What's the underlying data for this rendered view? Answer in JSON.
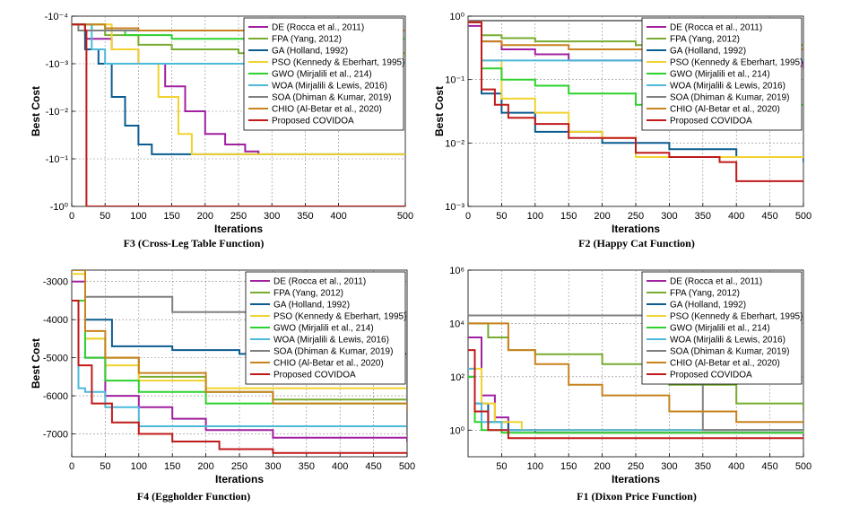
{
  "legend": [
    {
      "name": "DE (Rocca et al., 2011)",
      "color": "#a020a0"
    },
    {
      "name": "FPA (Yang, 2012)",
      "color": "#77ac30"
    },
    {
      "name": "GA (Holland, 1992)",
      "color": "#0b5c8f"
    },
    {
      "name": "PSO (Kennedy & Eberhart, 1995)",
      "color": "#f2d22e"
    },
    {
      "name": "GWO (Mirjalili et al., 214)",
      "color": "#2ed12e"
    },
    {
      "name": "WOA (Mirjalili & Lewis, 2016)",
      "color": "#4db9d9"
    },
    {
      "name": "SOA (Dhiman & Kumar, 2019)",
      "color": "#808080"
    },
    {
      "name": "CHIO (Al-Betar et al., 2020)",
      "color": "#c8821e"
    },
    {
      "name": "Proposed COVIDOA",
      "color": "#c01a1a"
    }
  ],
  "chart_data": [
    {
      "type": "line",
      "caption": "F3 (Cross-Leg Table Function)",
      "xlabel": "Iterations",
      "ylabel": "Best Cost",
      "xlim": [
        0,
        500
      ],
      "xticks": [
        "0",
        "50",
        "100",
        "150",
        "200",
        "250",
        "300",
        "350",
        "400",
        "500"
      ],
      "yscale": "log-negative",
      "yticks": [
        "-10⁻⁴",
        "-10⁻³",
        "-10⁻²",
        "-10⁻¹",
        "-10⁰"
      ],
      "ylim": [
        -0.0001,
        -1
      ],
      "legend_position": "top-right",
      "series": [
        {
          "name": "DE (Rocca et al., 2011)",
          "x": [
            0,
            20,
            60,
            100,
            140,
            170,
            200,
            230,
            260,
            280
          ],
          "y": [
            -0.00015,
            -0.0003,
            -0.0005,
            -0.001,
            -0.003,
            -0.01,
            -0.03,
            -0.05,
            -0.07,
            -0.08
          ]
        },
        {
          "name": "FPA (Yang, 2012)",
          "x": [
            0,
            50,
            100,
            150,
            250,
            500
          ],
          "y": [
            -0.00015,
            -0.00025,
            -0.0004,
            -0.0005,
            -0.0006,
            -0.0007
          ]
        },
        {
          "name": "GA (Holland, 1992)",
          "x": [
            0,
            20,
            40,
            60,
            80,
            100,
            120,
            500
          ],
          "y": [
            -0.00015,
            -0.0005,
            -0.001,
            -0.005,
            -0.02,
            -0.05,
            -0.08,
            -0.08
          ]
        },
        {
          "name": "PSO (Kennedy & Eberhart, 1995)",
          "x": [
            0,
            60,
            100,
            130,
            160,
            180,
            500
          ],
          "y": [
            -0.00015,
            -0.0005,
            -0.001,
            -0.005,
            -0.03,
            -0.08,
            -0.08
          ]
        },
        {
          "name": "GWO (Mirjalili et al., 214)",
          "x": [
            0,
            30,
            80,
            150,
            300,
            500
          ],
          "y": [
            -0.00015,
            -0.0002,
            -0.00025,
            -0.0003,
            -0.0003,
            -0.0003
          ]
        },
        {
          "name": "WOA (Mirjalili & Lewis, 2016)",
          "x": [
            0,
            30,
            50,
            500
          ],
          "y": [
            -0.00015,
            -0.0005,
            -0.001,
            -0.001
          ]
        },
        {
          "name": "SOA (Dhiman & Kumar, 2019)",
          "x": [
            0,
            10,
            500
          ],
          "y": [
            -0.00015,
            -0.0002,
            -0.0002
          ]
        },
        {
          "name": "CHIO (Al-Betar et al., 2020)",
          "x": [
            0,
            50,
            100,
            200,
            500
          ],
          "y": [
            -0.00015,
            -0.00018,
            -0.0002,
            -0.0002,
            -0.0002
          ]
        },
        {
          "name": "Proposed COVIDOA",
          "x": [
            0,
            20,
            22,
            500
          ],
          "y": [
            -0.00015,
            -0.0002,
            -1,
            -1
          ]
        }
      ]
    },
    {
      "type": "line",
      "caption": "F2 (Happy Cat Function)",
      "xlabel": "Iterations",
      "ylabel": "Best Cost",
      "xlim": [
        0,
        500
      ],
      "xticks": [
        "0",
        "50",
        "100",
        "150",
        "200",
        "250",
        "300",
        "350",
        "400",
        "450",
        "500"
      ],
      "yscale": "log",
      "yticks": [
        "10⁰",
        "10⁻¹",
        "10⁻²",
        "10⁻³"
      ],
      "ylim": [
        1,
        0.001
      ],
      "legend_position": "top-right",
      "series": [
        {
          "name": "DE (Rocca et al., 2011)",
          "x": [
            0,
            20,
            50,
            100,
            150,
            250,
            500
          ],
          "y": [
            0.7,
            0.4,
            0.3,
            0.25,
            0.2,
            0.2,
            0.15
          ]
        },
        {
          "name": "FPA (Yang, 2012)",
          "x": [
            0,
            20,
            50,
            100,
            250,
            500
          ],
          "y": [
            0.8,
            0.5,
            0.45,
            0.4,
            0.35,
            0.35
          ]
        },
        {
          "name": "GA (Holland, 1992)",
          "x": [
            0,
            20,
            50,
            100,
            200,
            300,
            400,
            500
          ],
          "y": [
            0.8,
            0.06,
            0.03,
            0.015,
            0.01,
            0.008,
            0.006,
            0.005
          ]
        },
        {
          "name": "PSO (Kennedy & Eberhart, 1995)",
          "x": [
            0,
            20,
            50,
            100,
            150,
            200,
            250,
            500
          ],
          "y": [
            0.8,
            0.2,
            0.05,
            0.03,
            0.015,
            0.012,
            0.006,
            0.006
          ]
        },
        {
          "name": "GWO (Mirjalili et al., 214)",
          "x": [
            0,
            20,
            50,
            100,
            150,
            250,
            500
          ],
          "y": [
            0.8,
            0.15,
            0.1,
            0.08,
            0.06,
            0.04,
            0.04
          ]
        },
        {
          "name": "WOA (Mirjalili & Lewis, 2016)",
          "x": [
            0,
            20,
            50,
            250,
            500
          ],
          "y": [
            0.8,
            0.2,
            0.2,
            0.2,
            0.2
          ]
        },
        {
          "name": "SOA (Dhiman & Kumar, 2019)",
          "x": [
            0,
            10,
            335
          ],
          "y": [
            0.85,
            0.85,
            0.85
          ]
        },
        {
          "name": "CHIO (Al-Betar et al., 2020)",
          "x": [
            0,
            20,
            50,
            150,
            500
          ],
          "y": [
            0.8,
            0.4,
            0.35,
            0.3,
            0.3
          ]
        },
        {
          "name": "Proposed COVIDOA",
          "x": [
            0,
            20,
            40,
            60,
            100,
            150,
            250,
            300,
            375,
            400,
            500
          ],
          "y": [
            0.8,
            0.07,
            0.04,
            0.025,
            0.02,
            0.012,
            0.007,
            0.006,
            0.005,
            0.0025,
            0.0025
          ]
        }
      ]
    },
    {
      "type": "line",
      "caption": "F4 (Eggholder Function)",
      "xlabel": "Iterations",
      "ylabel": "Best Cost",
      "xlim": [
        0,
        500
      ],
      "xticks": [
        "0",
        "50",
        "100",
        "150",
        "200",
        "250",
        "300",
        "350",
        "400",
        "450",
        "500"
      ],
      "yscale": "linear",
      "yticks": [
        "-3000",
        "-4000",
        "-5000",
        "-6000",
        "-7000"
      ],
      "ylim": [
        -2700,
        -7600
      ],
      "legend_position": "top-right",
      "series": [
        {
          "name": "DE (Rocca et al., 2011)",
          "x": [
            0,
            20,
            50,
            100,
            150,
            200,
            300,
            500
          ],
          "y": [
            -3000,
            -5000,
            -6000,
            -6300,
            -6600,
            -6900,
            -7100,
            -7200
          ]
        },
        {
          "name": "FPA (Yang, 2012)",
          "x": [
            0,
            20,
            50,
            100,
            200,
            300,
            500
          ],
          "y": [
            -2700,
            -4500,
            -5000,
            -5500,
            -5900,
            -6100,
            -6300
          ]
        },
        {
          "name": "GA (Holland, 1992)",
          "x": [
            0,
            20,
            60,
            150,
            250,
            500
          ],
          "y": [
            -2700,
            -4000,
            -4700,
            -4800,
            -4900,
            -4900
          ]
        },
        {
          "name": "PSO (Kennedy & Eberhart, 1995)",
          "x": [
            0,
            20,
            50,
            100,
            200,
            500
          ],
          "y": [
            -2800,
            -4500,
            -5200,
            -5600,
            -5800,
            -5900
          ]
        },
        {
          "name": "GWO (Mirjalili et al., 214)",
          "x": [
            0,
            20,
            50,
            100,
            200,
            500
          ],
          "y": [
            -3500,
            -5000,
            -5600,
            -5900,
            -6200,
            -6400
          ]
        },
        {
          "name": "WOA (Mirjalili & Lewis, 2016)",
          "x": [
            0,
            10,
            20,
            50,
            100,
            500
          ],
          "y": [
            -3500,
            -5800,
            -5900,
            -6300,
            -6800,
            -6800
          ]
        },
        {
          "name": "SOA (Dhiman & Kumar, 2019)",
          "x": [
            0,
            20,
            150,
            440,
            500
          ],
          "y": [
            -2700,
            -3400,
            -3800,
            -3800,
            -7000
          ]
        },
        {
          "name": "CHIO (Al-Betar et al., 2020)",
          "x": [
            0,
            20,
            50,
            100,
            200,
            300,
            500
          ],
          "y": [
            -2700,
            -4300,
            -5000,
            -5400,
            -5900,
            -6200,
            -6400
          ]
        },
        {
          "name": "Proposed COVIDOA",
          "x": [
            0,
            10,
            30,
            60,
            100,
            150,
            220,
            300,
            500
          ],
          "y": [
            -3500,
            -5200,
            -6200,
            -6700,
            -7000,
            -7200,
            -7400,
            -7500,
            -7500
          ]
        }
      ]
    },
    {
      "type": "line",
      "caption": "F1 (Dixon Price Function)",
      "xlabel": "Iterations",
      "ylabel": "",
      "xlim": [
        0,
        500
      ],
      "xticks": [
        "50",
        "100",
        "150",
        "200",
        "250",
        "300",
        "350",
        "400",
        "450",
        "500"
      ],
      "yscale": "log",
      "yticks": [
        "10⁶",
        "10⁴",
        "10²",
        "10⁰"
      ],
      "ylim": [
        1000000,
        0.1
      ],
      "legend_position": "top-right",
      "series": [
        {
          "name": "DE (Rocca et al., 2011)",
          "x": [
            0,
            20,
            40,
            60,
            100,
            500
          ],
          "y": [
            3000,
            20,
            3,
            1,
            0.8,
            0.6
          ]
        },
        {
          "name": "FPA (Yang, 2012)",
          "x": [
            0,
            30,
            60,
            100,
            200,
            300,
            400,
            500
          ],
          "y": [
            10000,
            3000,
            1000,
            700,
            300,
            50,
            10,
            5
          ]
        },
        {
          "name": "GA (Holland, 1992)",
          "x": [
            0,
            10,
            30,
            60,
            100,
            500
          ],
          "y": [
            100,
            10,
            2,
            1,
            1,
            1
          ]
        },
        {
          "name": "PSO (Kennedy & Eberhart, 1995)",
          "x": [
            0,
            20,
            40,
            80,
            500
          ],
          "y": [
            200,
            10,
            2,
            1,
            0.7
          ]
        },
        {
          "name": "GWO (Mirjalili et al., 214)",
          "x": [
            0,
            10,
            20,
            50,
            500
          ],
          "y": [
            100,
            2,
            1,
            0.8,
            0.8
          ]
        },
        {
          "name": "WOA (Mirjalili & Lewis, 2016)",
          "x": [
            0,
            10,
            20,
            50,
            500
          ],
          "y": [
            200,
            10,
            2,
            1,
            1
          ]
        },
        {
          "name": "SOA (Dhiman & Kumar, 2019)",
          "x": [
            0,
            100,
            200,
            340,
            350,
            500
          ],
          "y": [
            20000,
            20000,
            20000,
            20000,
            1,
            1
          ]
        },
        {
          "name": "CHIO (Al-Betar et al., 2020)",
          "x": [
            0,
            60,
            100,
            150,
            200,
            300,
            400,
            500
          ],
          "y": [
            10000,
            1000,
            300,
            50,
            20,
            5,
            2,
            2
          ]
        },
        {
          "name": "Proposed COVIDOA",
          "x": [
            0,
            10,
            30,
            60,
            500
          ],
          "y": [
            1000,
            5,
            1,
            0.5,
            0.5
          ]
        }
      ]
    }
  ]
}
